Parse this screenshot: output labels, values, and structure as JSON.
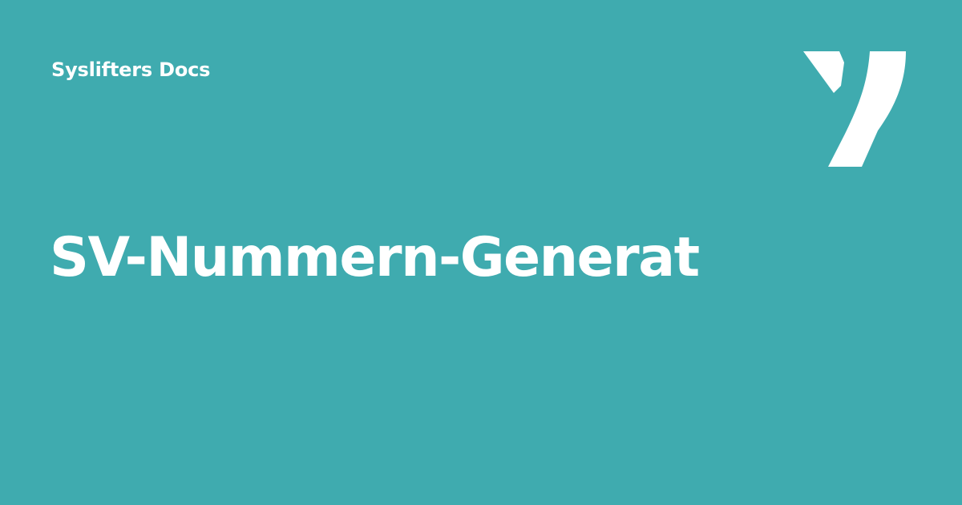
{
  "header": {
    "site_name": "Syslifters Docs"
  },
  "main": {
    "title": "SV-Nummern-Generat"
  },
  "logo": {
    "icon": "syslifters-y-logo-icon"
  },
  "colors": {
    "background": "#3fabaf",
    "foreground": "#ffffff"
  }
}
